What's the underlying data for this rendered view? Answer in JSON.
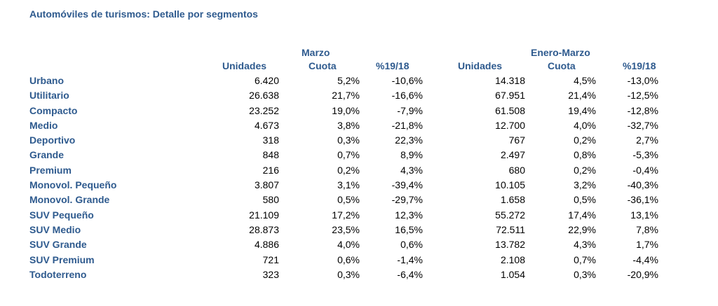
{
  "title": "Automóviles de turismos: Detalle por segmentos",
  "groups": {
    "marzo": "Marzo",
    "enero_marzo": "Enero-Marzo"
  },
  "columns": {
    "unidades": "Unidades",
    "cuota": "Cuota",
    "pct": "%19/18"
  },
  "rows": [
    {
      "label": "Urbano",
      "m_unid": "6.420",
      "m_cuota": "5,2%",
      "m_pct": "-10,6%",
      "e_unid": "14.318",
      "e_cuota": "4,5%",
      "e_pct": "-13,0%"
    },
    {
      "label": "Utilitario",
      "m_unid": "26.638",
      "m_cuota": "21,7%",
      "m_pct": "-16,6%",
      "e_unid": "67.951",
      "e_cuota": "21,4%",
      "e_pct": "-12,5%"
    },
    {
      "label": "Compacto",
      "m_unid": "23.252",
      "m_cuota": "19,0%",
      "m_pct": "-7,9%",
      "e_unid": "61.508",
      "e_cuota": "19,4%",
      "e_pct": "-12,8%"
    },
    {
      "label": "Medio",
      "m_unid": "4.673",
      "m_cuota": "3,8%",
      "m_pct": "-21,8%",
      "e_unid": "12.700",
      "e_cuota": "4,0%",
      "e_pct": "-32,7%"
    },
    {
      "label": "Deportivo",
      "m_unid": "318",
      "m_cuota": "0,3%",
      "m_pct": "22,3%",
      "e_unid": "767",
      "e_cuota": "0,2%",
      "e_pct": "2,7%"
    },
    {
      "label": "Grande",
      "m_unid": "848",
      "m_cuota": "0,7%",
      "m_pct": "8,9%",
      "e_unid": "2.497",
      "e_cuota": "0,8%",
      "e_pct": "-5,3%"
    },
    {
      "label": "Premium",
      "m_unid": "216",
      "m_cuota": "0,2%",
      "m_pct": "4,3%",
      "e_unid": "680",
      "e_cuota": "0,2%",
      "e_pct": "-0,4%"
    },
    {
      "label": "Monovol. Pequeño",
      "m_unid": "3.807",
      "m_cuota": "3,1%",
      "m_pct": "-39,4%",
      "e_unid": "10.105",
      "e_cuota": "3,2%",
      "e_pct": "-40,3%"
    },
    {
      "label": "Monovol. Grande",
      "m_unid": "580",
      "m_cuota": "0,5%",
      "m_pct": "-29,7%",
      "e_unid": "1.658",
      "e_cuota": "0,5%",
      "e_pct": "-36,1%"
    },
    {
      "label": "SUV Pequeño",
      "m_unid": "21.109",
      "m_cuota": "17,2%",
      "m_pct": "12,3%",
      "e_unid": "55.272",
      "e_cuota": "17,4%",
      "e_pct": "13,1%"
    },
    {
      "label": "SUV Medio",
      "m_unid": "28.873",
      "m_cuota": "23,5%",
      "m_pct": "16,5%",
      "e_unid": "72.511",
      "e_cuota": "22,9%",
      "e_pct": "7,8%"
    },
    {
      "label": "SUV Grande",
      "m_unid": "4.886",
      "m_cuota": "4,0%",
      "m_pct": "0,6%",
      "e_unid": "13.782",
      "e_cuota": "4,3%",
      "e_pct": "1,7%"
    },
    {
      "label": "SUV Premium",
      "m_unid": "721",
      "m_cuota": "0,6%",
      "m_pct": "-1,4%",
      "e_unid": "2.108",
      "e_cuota": "0,7%",
      "e_pct": "-4,4%"
    },
    {
      "label": "Todoterreno",
      "m_unid": "323",
      "m_cuota": "0,3%",
      "m_pct": "-6,4%",
      "e_unid": "1.054",
      "e_cuota": "0,3%",
      "e_pct": "-20,9%"
    }
  ]
}
